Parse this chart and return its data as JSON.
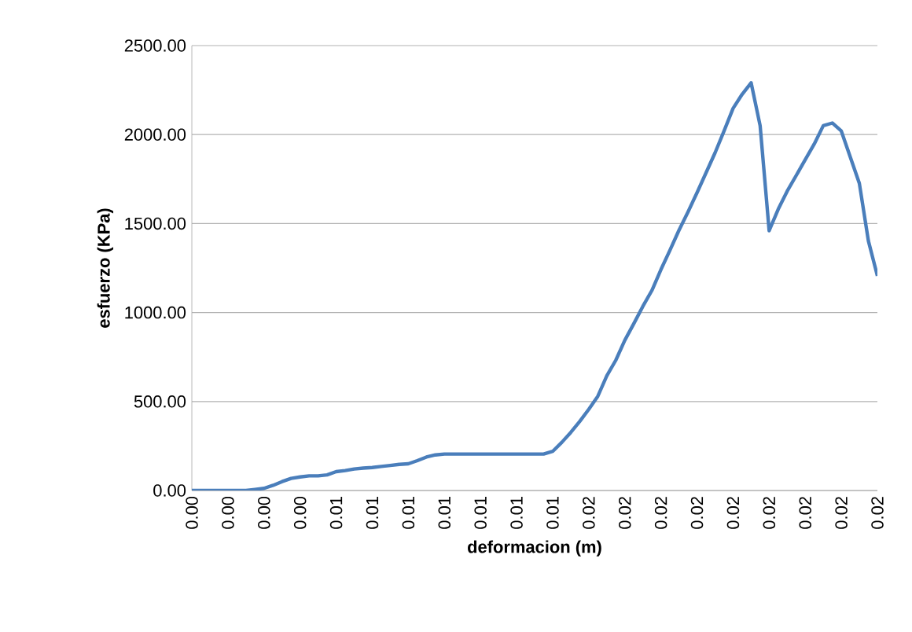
{
  "chart_data": {
    "type": "line",
    "xlabel": "deformacion (m)",
    "ylabel": "esfuerzo (KPa)",
    "categories": [
      "0.00",
      null,
      null,
      null,
      "0.00",
      null,
      null,
      null,
      "0.00",
      null,
      null,
      null,
      "0.00",
      null,
      null,
      null,
      "0.01",
      null,
      null,
      null,
      "0.01",
      null,
      null,
      null,
      "0.01",
      null,
      null,
      null,
      "0.01",
      null,
      null,
      null,
      "0.01",
      null,
      null,
      null,
      "0.01",
      null,
      null,
      null,
      "0.01",
      null,
      null,
      null,
      "0.02",
      null,
      null,
      null,
      "0.02",
      null,
      null,
      null,
      "0.02",
      null,
      null,
      null,
      "0.02",
      null,
      null,
      null,
      "0.02",
      null,
      null,
      null,
      "0.02",
      null,
      null,
      null,
      "0.02",
      null,
      null,
      null,
      "0.02",
      null,
      null,
      null,
      "0.02"
    ],
    "values": [
      0,
      0,
      0,
      0,
      0,
      0,
      0,
      6,
      12,
      29,
      50,
      68,
      76,
      82,
      82,
      88,
      106,
      112,
      121,
      126,
      129,
      135,
      141,
      147,
      150,
      168,
      188,
      200,
      205,
      205,
      205,
      205,
      205,
      205,
      205,
      205,
      205,
      205,
      205,
      205,
      220,
      270,
      326,
      388,
      456,
      529,
      644,
      732,
      844,
      938,
      1035,
      1124,
      1241,
      1350,
      1462,
      1565,
      1673,
      1785,
      1897,
      2020,
      2147,
      2226,
      2291,
      2050,
      1460,
      1580,
      1682,
      1770,
      1859,
      1947,
      2050,
      2065,
      2020,
      1873,
      1726,
      1403,
      1206
    ],
    "color": "#4a7ebb",
    "ylim": [
      0,
      2500
    ],
    "yticks": [
      {
        "value": 0,
        "label": "0.00"
      },
      {
        "value": 500,
        "label": "500.00"
      },
      {
        "value": 1000,
        "label": "1000.00"
      },
      {
        "value": 1500,
        "label": "1500.00"
      },
      {
        "value": 2000,
        "label": "2000.00"
      },
      {
        "value": 2500,
        "label": "2500.00"
      }
    ],
    "grid": "y"
  }
}
